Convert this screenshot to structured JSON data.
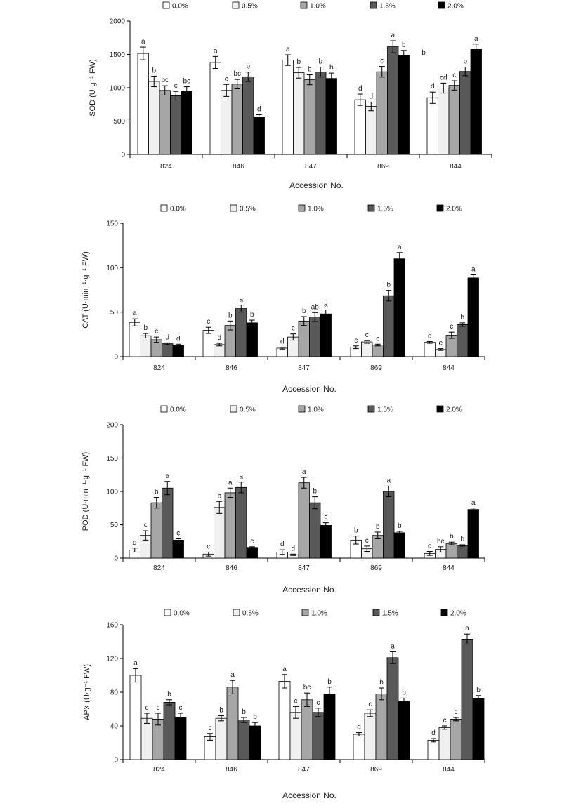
{
  "colors": {
    "0.0%": "#ffffff",
    "0.5%": "#f0f0f0",
    "1.0%": "#a6a6a6",
    "1.5%": "#595959",
    "2.0%": "#000000"
  },
  "chart_data": [
    {
      "type": "bar",
      "ylabel": "SOD (U·g⁻¹ FW)",
      "xlabel": "Accession No.",
      "ylim": [
        0,
        2000
      ],
      "yticks": [
        0,
        500,
        1000,
        1500,
        2000
      ],
      "categories": [
        "824",
        "846",
        "847",
        "869",
        "844"
      ],
      "legend": [
        "0.0%",
        "0.5%",
        "1.0%",
        "1.5%",
        "2.0%"
      ],
      "series": [
        {
          "name": "0.0%",
          "values": [
            1515,
            1380,
            1415,
            820,
            850
          ],
          "errors": [
            95,
            90,
            80,
            85,
            85
          ],
          "letters": [
            "a",
            "a",
            "a",
            "d",
            "d"
          ]
        },
        {
          "name": "0.5%",
          "values": [
            1095,
            960,
            1225,
            720,
            995
          ],
          "errors": [
            80,
            90,
            80,
            65,
            75
          ],
          "letters": [
            "b",
            "c",
            "b",
            "d",
            "cd"
          ]
        },
        {
          "name": "1.0%",
          "values": [
            960,
            1055,
            1120,
            1240,
            1035
          ],
          "errors": [
            70,
            70,
            75,
            80,
            70
          ],
          "letters": [
            "bc",
            "bc",
            "b",
            "c",
            "c"
          ]
        },
        {
          "name": "1.5%",
          "values": [
            880,
            1165,
            1235,
            1615,
            1245
          ],
          "errors": [
            65,
            70,
            75,
            90,
            65
          ],
          "letters": [
            "c",
            "b",
            "b",
            "a",
            "b"
          ]
        },
        {
          "name": "2.0%",
          "values": [
            945,
            555,
            1140,
            1485,
            1575
          ],
          "errors": [
            70,
            40,
            80,
            75,
            80
          ],
          "letters": [
            "bc",
            "d",
            "b",
            "b",
            "a"
          ]
        }
      ],
      "annotations": [
        "b"
      ]
    },
    {
      "type": "bar",
      "ylabel": "CAT (U·min⁻¹·g⁻¹ FW)",
      "xlabel": "Accession No.",
      "ylim": [
        0,
        150
      ],
      "yticks": [
        0,
        50,
        100,
        150
      ],
      "categories": [
        "824",
        "846",
        "847",
        "869",
        "844"
      ],
      "legend": [
        "0.0%",
        "0.5%",
        "1.0%",
        "1.5%",
        "2.0%"
      ],
      "series": [
        {
          "name": "0.0%",
          "values": [
            38.5,
            29.5,
            9.5,
            10.5,
            16
          ],
          "errors": [
            4,
            3.5,
            1,
            1.5,
            1
          ],
          "letters": [
            "a",
            "c",
            "d",
            "c",
            "d"
          ]
        },
        {
          "name": "0.5%",
          "values": [
            23.5,
            13.5,
            22,
            16.5,
            8
          ],
          "errors": [
            2.5,
            1.5,
            3.5,
            1.5,
            1
          ],
          "letters": [
            "b",
            "d",
            "c",
            "c",
            "e"
          ]
        },
        {
          "name": "1.0%",
          "values": [
            19,
            35,
            40,
            13,
            24
          ],
          "errors": [
            3,
            5,
            5,
            1,
            3.5
          ],
          "letters": [
            "c",
            "b",
            "b",
            "c",
            "c"
          ]
        },
        {
          "name": "1.5%",
          "values": [
            14.5,
            54,
            44.5,
            68.5,
            36
          ],
          "errors": [
            1,
            4,
            5,
            6,
            2
          ],
          "letters": [
            "d",
            "a",
            "ab",
            "b",
            "b"
          ]
        },
        {
          "name": "2.0%",
          "values": [
            12.5,
            38,
            48,
            110,
            88.5
          ],
          "errors": [
            1.5,
            3,
            4.5,
            7,
            3.5
          ],
          "letters": [
            "d",
            "b",
            "a",
            "a",
            "a"
          ]
        }
      ]
    },
    {
      "type": "bar",
      "ylabel": "POD (U·min⁻¹·g⁻¹ FW)",
      "xlabel": "Accession No.",
      "ylim": [
        0,
        200
      ],
      "yticks": [
        0,
        50,
        100,
        150,
        200
      ],
      "categories": [
        "824",
        "846",
        "847",
        "869",
        "844"
      ],
      "legend": [
        "0.0%",
        "0.5%",
        "1.0%",
        "1.5%",
        "2.0%"
      ],
      "series": [
        {
          "name": "0.0%",
          "values": [
            12,
            6,
            9,
            27,
            7
          ],
          "errors": [
            3,
            3,
            3.5,
            6,
            3
          ],
          "letters": [
            "d",
            "c",
            "d",
            "b",
            "d"
          ]
        },
        {
          "name": "0.5%",
          "values": [
            34,
            76,
            5,
            14,
            13
          ],
          "errors": [
            7,
            9,
            1,
            4,
            4
          ],
          "letters": [
            "c",
            "b",
            "d",
            "c",
            "bc"
          ]
        },
        {
          "name": "1.0%",
          "values": [
            83,
            98,
            113,
            34,
            22
          ],
          "errors": [
            8,
            7,
            8,
            5,
            2
          ],
          "letters": [
            "b",
            "a",
            "a",
            "b",
            "b"
          ]
        },
        {
          "name": "1.5%",
          "values": [
            105,
            106,
            83,
            100,
            19
          ],
          "errors": [
            10,
            8,
            9,
            8,
            1
          ],
          "letters": [
            "a",
            "a",
            "b",
            "a",
            "b"
          ]
        },
        {
          "name": "2.0%",
          "values": [
            27,
            16,
            49,
            38,
            73
          ],
          "errors": [
            2,
            1,
            4,
            2,
            2
          ],
          "letters": [
            "c",
            "c",
            "c",
            "b",
            "a"
          ]
        }
      ]
    },
    {
      "type": "bar",
      "ylabel": "APX (U·g⁻¹ FW)",
      "xlabel": "Accession No.",
      "ylim": [
        0,
        160
      ],
      "yticks": [
        0,
        40,
        80,
        120,
        160
      ],
      "categories": [
        "824",
        "846",
        "847",
        "869",
        "844"
      ],
      "legend": [
        "0.0%",
        "0.5%",
        "1.0%",
        "1.5%",
        "2.0%"
      ],
      "series": [
        {
          "name": "0.0%",
          "values": [
            100,
            27,
            93,
            30,
            23
          ],
          "errors": [
            8,
            4,
            8,
            2,
            2
          ],
          "letters": [
            "a",
            "c",
            "a",
            "d",
            "d"
          ]
        },
        {
          "name": "0.5%",
          "values": [
            49,
            49,
            56,
            55,
            38
          ],
          "errors": [
            6,
            3,
            7,
            4,
            2
          ],
          "letters": [
            "c",
            "b",
            "c",
            "c",
            "c"
          ]
        },
        {
          "name": "1.0%",
          "values": [
            48,
            86,
            71,
            78,
            48
          ],
          "errors": [
            7,
            8,
            8,
            7,
            2
          ],
          "letters": [
            "c",
            "a",
            "bc",
            "b",
            "c"
          ]
        },
        {
          "name": "1.5%",
          "values": [
            68,
            47,
            56,
            121,
            143
          ],
          "errors": [
            3,
            3,
            5,
            7,
            6
          ],
          "letters": [
            "b",
            "b",
            "c",
            "a",
            "a"
          ]
        },
        {
          "name": "2.0%",
          "values": [
            50,
            40,
            78,
            69,
            73
          ],
          "errors": [
            5,
            4,
            8,
            4,
            3
          ],
          "letters": [
            "c",
            "b",
            "b",
            "b",
            "b"
          ]
        }
      ]
    }
  ]
}
